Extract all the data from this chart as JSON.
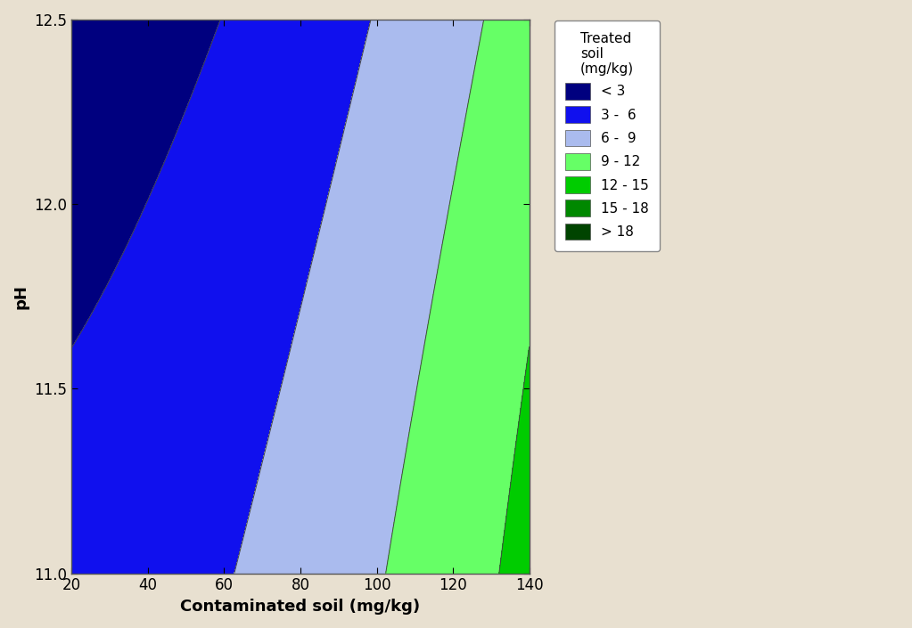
{
  "xlabel": "Contaminated soil (mg/kg)",
  "ylabel": "pH",
  "x_min": 20,
  "x_max": 140,
  "y_min": 11.0,
  "y_max": 12.5,
  "x_ticks": [
    20,
    40,
    60,
    80,
    100,
    120,
    140
  ],
  "y_ticks": [
    11.0,
    11.5,
    12.0,
    12.5
  ],
  "levels": [
    0,
    3,
    6,
    9,
    12,
    15,
    18,
    30
  ],
  "colors": [
    "#00007F",
    "#1010EE",
    "#AABBEE",
    "#66FF66",
    "#00CC00",
    "#008800",
    "#004400"
  ],
  "legend_title": "Treated\nsoil\n(mg/kg)",
  "legend_labels": [
    "< 3",
    "3 -  6",
    "6 -  9",
    "9 - 12",
    "12 - 15",
    "15 - 18",
    "> 18"
  ],
  "legend_colors": [
    "#00007F",
    "#1010EE",
    "#AABBEE",
    "#66FF66",
    "#00CC00",
    "#008800",
    "#004400"
  ],
  "background_color": "#E8E0D0",
  "plot_bg_color": "#E8E0D0"
}
